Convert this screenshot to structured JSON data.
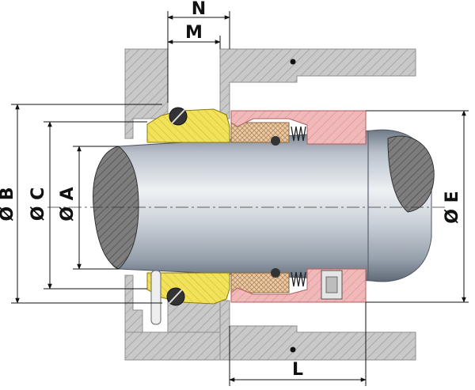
{
  "labels": {
    "N": "N",
    "M": "M",
    "L": "L",
    "B": "Ø B",
    "C": "Ø C",
    "A": "Ø A",
    "E": "Ø E"
  },
  "colors": {
    "housing": "#c9c9c9",
    "housing_hatch": "#8f8f8f",
    "seat_yellow": "#f2e15a",
    "face_tan": "#e8c9a8",
    "body_pink": "#f0b8b8",
    "shaft_light": "#dfe4ea",
    "shaft_dark": "#8c96a2",
    "oring": "#333333",
    "dim_line": "#111111"
  }
}
